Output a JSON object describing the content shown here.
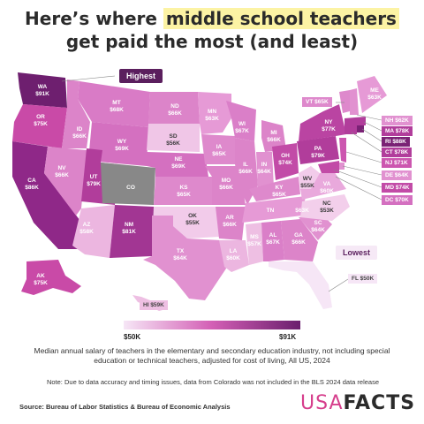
{
  "title": {
    "line1_pre": "Here’s where ",
    "line1_highlight": "middle school teachers",
    "line2": "get paid the most (and least)"
  },
  "callouts": {
    "highest": "Highest",
    "lowest": "Lowest"
  },
  "states": {
    "WA": "$91K",
    "OR": "$75K",
    "CA": "$86K",
    "ID": "$66K",
    "NV": "$66K",
    "MT": "$68K",
    "WY": "$69K",
    "UT": "$79K",
    "AZ": "$58K",
    "CO": "",
    "NM": "$81K",
    "ND": "$66K",
    "SD": "$56K",
    "NE": "$69K",
    "KS": "$65K",
    "OK": "$55K",
    "TX": "$64K",
    "MN": "$63K",
    "IA": "$65K",
    "MO": "$66K",
    "AR": "$66K",
    "LA": "$60K",
    "WI": "$67K",
    "IL": "$66K",
    "MI": "$66K",
    "IN": "$64K",
    "OH": "$74K",
    "KY": "$65K",
    "TN": "$63K",
    "MS": "$57K",
    "AL": "$67K",
    "GA": "$66K",
    "FL": "$50K",
    "SC": "$64K",
    "NC": "$53K",
    "VA": "$60K",
    "WV": "$55K",
    "PA": "$79K",
    "NY": "$77K",
    "VT": "$65K",
    "ME": "$63K",
    "NH": "$62K",
    "MA": "$78K",
    "RI": "$88K",
    "CT": "$78K",
    "NJ": "$71K",
    "DE": "$64K",
    "MD": "$74K",
    "DC": "$70K",
    "AK": "$75K",
    "HI": "$59K"
  },
  "legend": {
    "min": "$50K",
    "max": "$91K",
    "colors": [
      "#f6e6f6",
      "#d35fb5",
      "#6a1e6d"
    ]
  },
  "caption": "Median annual salary of teachers in the elementary and secondary education industry, not including special education or technical teachers, adjusted for cost of living, All US, 2024",
  "note": "Note: Due to data accuracy and timing issues, data from Colorado was not included in the BLS 2024 data release",
  "source": "Source: Bureau of Labor Statistics & Bureau of Economic Analysis",
  "logo": {
    "usa": "USA",
    "facts": "FACTS"
  }
}
